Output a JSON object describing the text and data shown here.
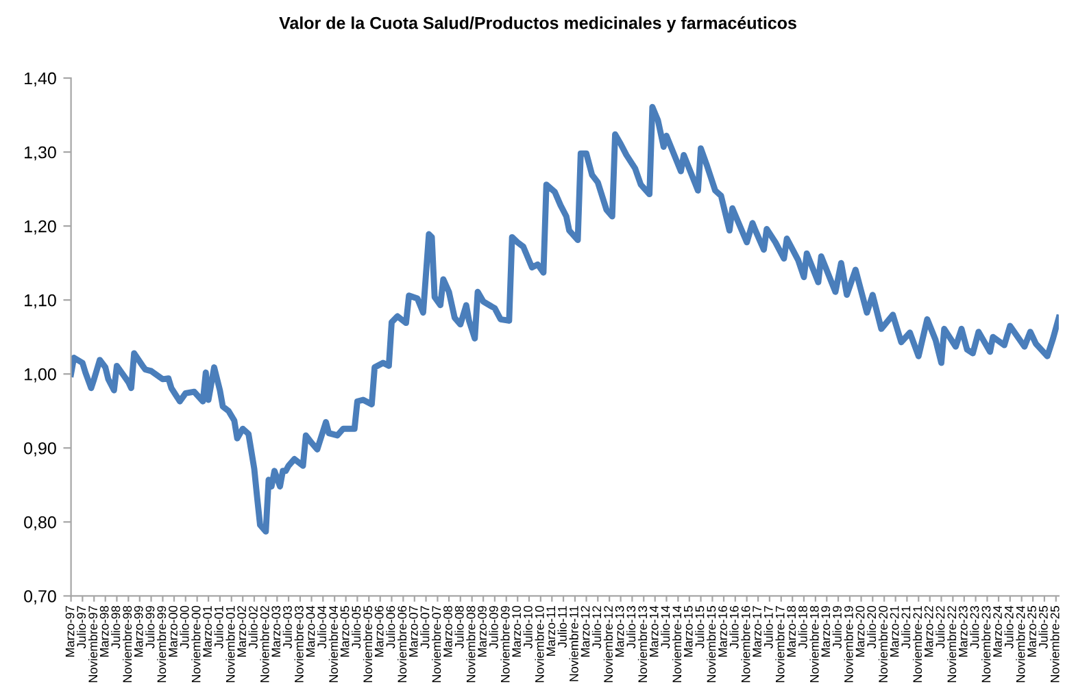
{
  "chart_data": {
    "type": "line",
    "title": "Valor de la Cuota Salud/Productos medicinales y farmacéuticos",
    "x": [
      "1997-03",
      "1997-04",
      "1997-07",
      "1997-08",
      "1997-10",
      "1997-11",
      "1998-01",
      "1998-03",
      "1998-04",
      "1998-06",
      "1998-07",
      "1998-09",
      "1998-11",
      "1998-12",
      "1999-01",
      "1999-04",
      "1999-05",
      "1999-07",
      "1999-11",
      "2000-01",
      "2000-02",
      "2000-05",
      "2000-07",
      "2000-10",
      "2001-01",
      "2001-02",
      "2001-03",
      "2001-05",
      "2001-07",
      "2001-08",
      "2001-10",
      "2001-12",
      "2002-01",
      "2002-03",
      "2002-05",
      "2002-07",
      "2002-08",
      "2002-09",
      "2002-11",
      "2002-12",
      "2003-01",
      "2003-02",
      "2003-04",
      "2003-05",
      "2003-06",
      "2003-07",
      "2003-09",
      "2003-12",
      "2004-01",
      "2004-03",
      "2004-05",
      "2004-08",
      "2004-09",
      "2004-12",
      "2005-02",
      "2005-06",
      "2005-07",
      "2005-09",
      "2005-12",
      "2006-01",
      "2006-04",
      "2006-06",
      "2006-07",
      "2006-09",
      "2006-12",
      "2007-01",
      "2007-04",
      "2007-06",
      "2007-08",
      "2007-09",
      "2007-10",
      "2007-12",
      "2008-01",
      "2008-03",
      "2008-05",
      "2008-07",
      "2008-09",
      "2008-10",
      "2008-12",
      "2009-01",
      "2009-03",
      "2009-06",
      "2009-07",
      "2009-09",
      "2009-12",
      "2010-01",
      "2010-03",
      "2010-05",
      "2010-08",
      "2010-10",
      "2010-12",
      "2011-01",
      "2011-04",
      "2011-06",
      "2011-08",
      "2011-09",
      "2011-12",
      "2012-01",
      "2012-03",
      "2012-05",
      "2012-07",
      "2012-10",
      "2012-12",
      "2013-01",
      "2013-03",
      "2013-05",
      "2013-08",
      "2013-10",
      "2014-01",
      "2014-02",
      "2014-04",
      "2014-06",
      "2014-07",
      "2014-12",
      "2015-01",
      "2015-06",
      "2015-07",
      "2015-09",
      "2015-12",
      "2016-02",
      "2016-05",
      "2016-06",
      "2016-11",
      "2017-01",
      "2017-02",
      "2017-05",
      "2017-06",
      "2017-09",
      "2017-12",
      "2018-01",
      "2018-05",
      "2018-07",
      "2018-08",
      "2018-12",
      "2019-01",
      "2019-06",
      "2019-08",
      "2019-10",
      "2020-01",
      "2020-05",
      "2020-07",
      "2020-10",
      "2021-02",
      "2021-05",
      "2021-08",
      "2021-11",
      "2022-02",
      "2022-05",
      "2022-07",
      "2022-08",
      "2022-12",
      "2023-02",
      "2023-04",
      "2023-06",
      "2023-08",
      "2023-12",
      "2024-01",
      "2024-05",
      "2024-07",
      "2024-12",
      "2025-02",
      "2025-04",
      "2025-08",
      "2025-10",
      "2025-12"
    ],
    "series": [
      {
        "color": "#4a7ebb",
        "values": [
          1.0,
          1.022,
          1.015,
          1.002,
          0.981,
          0.993,
          1.019,
          1.009,
          0.993,
          0.978,
          1.011,
          1.0,
          0.989,
          0.981,
          1.028,
          1.011,
          1.006,
          1.004,
          0.993,
          0.994,
          0.981,
          0.963,
          0.974,
          0.976,
          0.963,
          1.002,
          0.965,
          1.009,
          0.978,
          0.956,
          0.95,
          0.937,
          0.913,
          0.926,
          0.919,
          0.872,
          0.833,
          0.796,
          0.787,
          0.857,
          0.848,
          0.869,
          0.848,
          0.869,
          0.869,
          0.876,
          0.885,
          0.876,
          0.917,
          0.907,
          0.898,
          0.935,
          0.92,
          0.917,
          0.926,
          0.926,
          0.963,
          0.965,
          0.959,
          1.009,
          1.015,
          1.011,
          1.07,
          1.078,
          1.069,
          1.106,
          1.102,
          1.083,
          1.189,
          1.185,
          1.104,
          1.093,
          1.128,
          1.111,
          1.076,
          1.067,
          1.093,
          1.072,
          1.048,
          1.111,
          1.098,
          1.091,
          1.089,
          1.074,
          1.072,
          1.185,
          1.178,
          1.172,
          1.144,
          1.148,
          1.137,
          1.256,
          1.246,
          1.228,
          1.213,
          1.194,
          1.181,
          1.298,
          1.298,
          1.269,
          1.259,
          1.222,
          1.213,
          1.324,
          1.311,
          1.296,
          1.278,
          1.256,
          1.243,
          1.361,
          1.343,
          1.307,
          1.322,
          1.274,
          1.296,
          1.248,
          1.305,
          1.283,
          1.248,
          1.241,
          1.194,
          1.224,
          1.178,
          1.204,
          1.194,
          1.168,
          1.196,
          1.178,
          1.156,
          1.183,
          1.154,
          1.131,
          1.163,
          1.124,
          1.159,
          1.111,
          1.15,
          1.107,
          1.141,
          1.083,
          1.107,
          1.061,
          1.08,
          1.043,
          1.056,
          1.024,
          1.074,
          1.046,
          1.015,
          1.061,
          1.037,
          1.061,
          1.033,
          1.028,
          1.057,
          1.03,
          1.05,
          1.039,
          1.065,
          1.037,
          1.057,
          1.041,
          1.024,
          1.048,
          1.076
        ]
      }
    ],
    "ylim": [
      0.7,
      1.4
    ],
    "yticks": [
      {
        "value": 0.7,
        "label": "0,70"
      },
      {
        "value": 0.8,
        "label": "0,80"
      },
      {
        "value": 0.9,
        "label": "0,90"
      },
      {
        "value": 1.0,
        "label": "1,00"
      },
      {
        "value": 1.1,
        "label": "1,10"
      },
      {
        "value": 1.2,
        "label": "1,20"
      },
      {
        "value": 1.3,
        "label": "1,30"
      },
      {
        "value": 1.4,
        "label": "1,40"
      }
    ],
    "xlim": [
      "1997-03",
      "2025-12"
    ],
    "xticks": [
      {
        "value": "1997-03",
        "label": "Marzo-97"
      },
      {
        "value": "1997-07",
        "label": "Julio-97"
      },
      {
        "value": "1997-11",
        "label": "Noviembre-97"
      },
      {
        "value": "1998-03",
        "label": "Marzo-98"
      },
      {
        "value": "1998-07",
        "label": "Julio-98"
      },
      {
        "value": "1998-11",
        "label": "Noviembre-98"
      },
      {
        "value": "1999-03",
        "label": "Marzo-99"
      },
      {
        "value": "1999-07",
        "label": "Julio-99"
      },
      {
        "value": "1999-11",
        "label": "Noviembre-99"
      },
      {
        "value": "2000-03",
        "label": "Marzo-00"
      },
      {
        "value": "2000-07",
        "label": "Julio-00"
      },
      {
        "value": "2000-11",
        "label": "Noviembre-00"
      },
      {
        "value": "2001-03",
        "label": "Marzo-01"
      },
      {
        "value": "2001-07",
        "label": "Julio-01"
      },
      {
        "value": "2001-11",
        "label": "Noviembre-01"
      },
      {
        "value": "2002-03",
        "label": "Marzo-02"
      },
      {
        "value": "2002-07",
        "label": "Julio-02"
      },
      {
        "value": "2002-11",
        "label": "Noviembre-02"
      },
      {
        "value": "2003-03",
        "label": "Marzo-03"
      },
      {
        "value": "2003-07",
        "label": "Julio-03"
      },
      {
        "value": "2003-11",
        "label": "Noviembre-03"
      },
      {
        "value": "2004-03",
        "label": "Marzo-04"
      },
      {
        "value": "2004-07",
        "label": "Julio-04"
      },
      {
        "value": "2004-11",
        "label": "Noviembre-04"
      },
      {
        "value": "2005-03",
        "label": "Marzo-05"
      },
      {
        "value": "2005-07",
        "label": "Julio-05"
      },
      {
        "value": "2005-11",
        "label": "Noviembre-05"
      },
      {
        "value": "2006-03",
        "label": "Marzo-06"
      },
      {
        "value": "2006-07",
        "label": "Julio-06"
      },
      {
        "value": "2006-11",
        "label": "Noviembre-06"
      },
      {
        "value": "2007-03",
        "label": "Marzo-07"
      },
      {
        "value": "2007-07",
        "label": "Julio-07"
      },
      {
        "value": "2007-11",
        "label": "Noviembre-07"
      },
      {
        "value": "2008-03",
        "label": "Marzo-08"
      },
      {
        "value": "2008-07",
        "label": "Julio-08"
      },
      {
        "value": "2008-11",
        "label": "Noviembre-08"
      },
      {
        "value": "2009-03",
        "label": "Marzo-09"
      },
      {
        "value": "2009-07",
        "label": "Julio-09"
      },
      {
        "value": "2009-11",
        "label": "Noviembre-09"
      },
      {
        "value": "2010-03",
        "label": "Marzo-10"
      },
      {
        "value": "2010-07",
        "label": "Julio-10"
      },
      {
        "value": "2010-11",
        "label": "Noviembre-10"
      },
      {
        "value": "2011-03",
        "label": "Marzo-11"
      },
      {
        "value": "2011-07",
        "label": "Julio-11"
      },
      {
        "value": "2011-11",
        "label": "Noviembre-11"
      },
      {
        "value": "2012-03",
        "label": "Marzo-12"
      },
      {
        "value": "2012-07",
        "label": "Julio-12"
      },
      {
        "value": "2012-11",
        "label": "Noviembre-12"
      },
      {
        "value": "2013-03",
        "label": "Marzo-13"
      },
      {
        "value": "2013-07",
        "label": "Julio-13"
      },
      {
        "value": "2013-11",
        "label": "Noviembre-13"
      },
      {
        "value": "2014-03",
        "label": "Marzo-14"
      },
      {
        "value": "2014-07",
        "label": "Julio-14"
      },
      {
        "value": "2014-11",
        "label": "Noviembre-14"
      },
      {
        "value": "2015-03",
        "label": "Marzo-15"
      },
      {
        "value": "2015-07",
        "label": "Julio-15"
      },
      {
        "value": "2015-11",
        "label": "Noviembre-15"
      },
      {
        "value": "2016-03",
        "label": "Marzo-16"
      },
      {
        "value": "2016-07",
        "label": "Julio-16"
      },
      {
        "value": "2016-11",
        "label": "Noviembre-16"
      },
      {
        "value": "2017-03",
        "label": "Marzo-17"
      },
      {
        "value": "2017-07",
        "label": "Julio-17"
      },
      {
        "value": "2017-11",
        "label": "Noviembre-17"
      },
      {
        "value": "2018-03",
        "label": "Marzo-18"
      },
      {
        "value": "2018-07",
        "label": "Julio-18"
      },
      {
        "value": "2018-11",
        "label": "Noviembre-18"
      },
      {
        "value": "2019-03",
        "label": "Marzo-19"
      },
      {
        "value": "2019-07",
        "label": "Julio-19"
      },
      {
        "value": "2019-11",
        "label": "Noviembre-19"
      },
      {
        "value": "2020-03",
        "label": "Marzo-20"
      },
      {
        "value": "2020-07",
        "label": "Julio-20"
      },
      {
        "value": "2020-11",
        "label": "Noviembre-20"
      },
      {
        "value": "2021-03",
        "label": "Marzo-21"
      },
      {
        "value": "2021-07",
        "label": "Julio-21"
      },
      {
        "value": "2021-11",
        "label": "Noviembre-21"
      },
      {
        "value": "2022-03",
        "label": "Marzo-22"
      },
      {
        "value": "2022-07",
        "label": "Julio-22"
      },
      {
        "value": "2022-11",
        "label": "Noviembre-22"
      },
      {
        "value": "2023-03",
        "label": "Marzo-23"
      },
      {
        "value": "2023-07",
        "label": "Julio-23"
      },
      {
        "value": "2023-11",
        "label": "Noviembre-23"
      },
      {
        "value": "2024-03",
        "label": "Marzo-24"
      },
      {
        "value": "2024-07",
        "label": "Julio-24"
      },
      {
        "value": "2024-11",
        "label": "Noviembre-24"
      },
      {
        "value": "2025-03",
        "label": "Marzo-25"
      },
      {
        "value": "2025-07",
        "label": "Julio-25"
      },
      {
        "value": "2025-11",
        "label": "Noviembre-25"
      }
    ],
    "marker": "none",
    "line_style": "solid"
  }
}
